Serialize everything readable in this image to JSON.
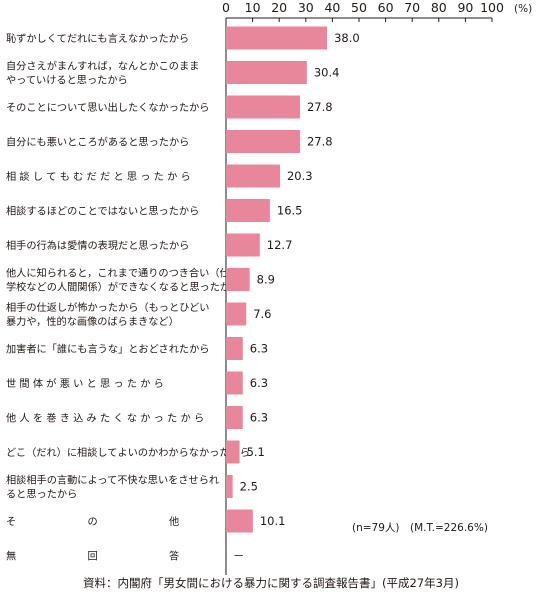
{
  "chart_data": {
    "type": "bar",
    "orientation": "horizontal",
    "unit": "(%)",
    "xlim": [
      0,
      100
    ],
    "x_ticks": [
      "0",
      "10",
      "20",
      "30",
      "40",
      "50",
      "60",
      "70",
      "80",
      "90",
      "100"
    ],
    "bar_color": "#e8879b",
    "categories": [
      [
        "恥ずかしくてだれにも言えなかったから"
      ],
      [
        "自分さえがまんすれば，なんとかこのまま",
        "やっていけると思ったから"
      ],
      [
        "そのことについて思い出したくなかったから"
      ],
      [
        "自分にも悪いところがあると思ったから"
      ],
      [
        "相 談 し て も む だ だ と 思 っ た か ら"
      ],
      [
        "相談するほどのことではないと思ったから"
      ],
      [
        "相手の行為は愛情の表現だと思ったから"
      ],
      [
        "他人に知られると，これまで通りのつき合い（仕事や",
        "学校などの人間関係）ができなくなると思ったから"
      ],
      [
        "相手の仕返しが怖かったから（もっとひどい",
        "暴力や，性的な画像のばらまきなど）"
      ],
      [
        "加害者に「誰にも言うな」とおどされたから"
      ],
      [
        "世 間 体 が 悪 い と 思 っ た か ら"
      ],
      [
        "他 人 を 巻 き 込 み た く な か っ た か ら"
      ],
      [
        "どこ（だれ）に相談してよいのかわからなかったから"
      ],
      [
        "相談相手の言動によって不快な思いをさせられ",
        "ると思ったから"
      ],
      [
        "そ　　　　　　　の　　　　　　　他"
      ],
      [
        "無　　　　　　　回　　　　　　　答"
      ]
    ],
    "values": [
      38.0,
      30.4,
      27.8,
      27.8,
      20.3,
      16.5,
      12.7,
      8.9,
      7.6,
      6.3,
      6.3,
      6.3,
      5.1,
      2.5,
      10.1,
      null
    ],
    "value_labels": [
      "38.0",
      "30.4",
      "27.8",
      "27.8",
      "20.3",
      "16.5",
      "12.7",
      "8.9",
      "7.6",
      "6.3",
      "6.3",
      "6.3",
      "5.1",
      "2.5",
      "10.1",
      "－"
    ]
  },
  "notes": {
    "sample": "(n=79人)　(M.T.=226.6%)",
    "source": "資料：内閣府「男女間における暴力に関する調査報告書」(平成27年3月)"
  }
}
